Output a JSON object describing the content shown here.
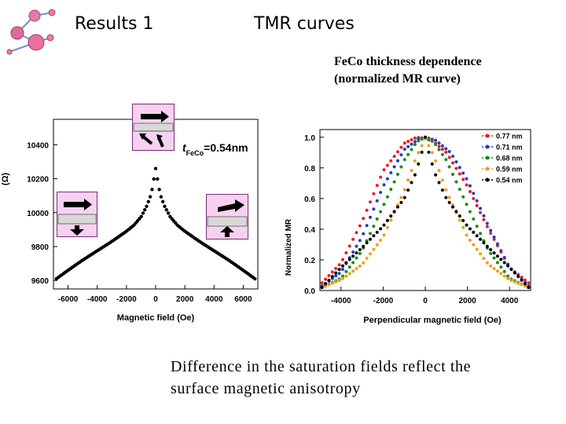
{
  "slide": {
    "title_left": "Results 1",
    "title_right": "TMR curves",
    "subtitle_line1": "FeCo thickness dependence",
    "subtitle_line2": "(normalized MR curve)",
    "conclusion_line1": "Difference in the saturation fields reflect the",
    "conclusion_line2": "surface magnetic anisotropy"
  },
  "chart_data": [
    {
      "type": "scatter",
      "title": "",
      "xlabel": "Magnetic field (Oe)",
      "ylabel": "R (Ω)",
      "ylabel_visible": "(Ω)",
      "annotation_t": "t",
      "annotation_sub": "FeCo",
      "annotation_value": "=0.54nm",
      "xlim": [
        -7000,
        7000
      ],
      "ylim": [
        9550,
        10550
      ],
      "xticks": [
        -6000,
        -4000,
        -2000,
        0,
        2000,
        4000,
        6000
      ],
      "yticks": [
        9600,
        9800,
        10000,
        10200,
        10400
      ],
      "series": [
        {
          "color": "#000000",
          "x": [
            -6800,
            -6000,
            -5000,
            -4000,
            -3000,
            -2000,
            -1500,
            -1000,
            -600,
            -300,
            -100,
            0,
            100,
            300,
            600,
            1000,
            1500,
            2000,
            3000,
            4000,
            5000,
            6000,
            6800
          ],
          "y": [
            9610,
            9660,
            9720,
            9775,
            9830,
            9890,
            9925,
            9975,
            10040,
            10110,
            10210,
            10260,
            10210,
            10110,
            10040,
            9975,
            9925,
            9890,
            9830,
            9775,
            9720,
            9660,
            9610
          ]
        }
      ],
      "magnetization_diagrams": [
        {
          "position": "top-center",
          "top_arrow": "right",
          "bottom_arrow": "random"
        },
        {
          "position": "left",
          "top_arrow": "right",
          "bottom_arrow": "down"
        },
        {
          "position": "right",
          "top_arrow": "right",
          "bottom_arrow": "up"
        }
      ]
    },
    {
      "type": "scatter",
      "title": "",
      "xlabel": "Perpendicular magnetic field (Oe)",
      "ylabel": "Normalized MR",
      "xlim": [
        -5000,
        5000
      ],
      "ylim": [
        0.0,
        1.05
      ],
      "xticks": [
        -4000,
        -2000,
        0,
        2000,
        4000
      ],
      "yticks": [
        0.0,
        0.2,
        0.4,
        0.6,
        0.8,
        1.0
      ],
      "ytick_labels": [
        "0.0",
        "0.2",
        "0.4",
        "0.6",
        "0.8",
        "1.0"
      ],
      "legend": "top-right",
      "series": [
        {
          "name": "0.77 nm",
          "color": "#ee1c24",
          "x": [
            -4900,
            -4000,
            -3000,
            -2000,
            -1000,
            -400,
            0,
            400,
            1000,
            2000,
            3000,
            4000,
            4900
          ],
          "y": [
            0.05,
            0.18,
            0.45,
            0.78,
            0.96,
            1.0,
            0.99,
            0.97,
            0.9,
            0.68,
            0.4,
            0.15,
            0.05
          ]
        },
        {
          "name": "0.71 nm",
          "color": "#1f3fc8",
          "x": [
            -4900,
            -4000,
            -3000,
            -2000,
            -1000,
            -300,
            0,
            500,
            1200,
            2000,
            3000,
            4000,
            4900
          ],
          "y": [
            0.03,
            0.12,
            0.35,
            0.68,
            0.92,
            0.99,
            1.0,
            0.98,
            0.9,
            0.72,
            0.42,
            0.15,
            0.03
          ]
        },
        {
          "name": "0.68 nm",
          "color": "#1a8a1a",
          "x": [
            -4900,
            -4000,
            -3000,
            -2000,
            -1000,
            -400,
            0,
            400,
            1000,
            2000,
            3000,
            4000,
            4900
          ],
          "y": [
            0.02,
            0.08,
            0.26,
            0.55,
            0.85,
            0.97,
            1.0,
            0.97,
            0.85,
            0.55,
            0.26,
            0.08,
            0.02
          ]
        },
        {
          "name": "0.59 nm",
          "color": "#f39c1a",
          "x": [
            -4900,
            -4000,
            -3000,
            -2000,
            -1000,
            -400,
            0,
            400,
            1000,
            2000,
            3000,
            4000,
            4900
          ],
          "y": [
            0.02,
            0.07,
            0.17,
            0.35,
            0.65,
            0.88,
            0.99,
            0.88,
            0.65,
            0.35,
            0.17,
            0.07,
            0.02
          ]
        },
        {
          "name": "0.54 nm",
          "color": "#000000",
          "x": [
            -4900,
            -4000,
            -3000,
            -2000,
            -1000,
            -500,
            -200,
            0,
            200,
            500,
            1000,
            2000,
            3000,
            4000,
            4900
          ],
          "y": [
            0.02,
            0.15,
            0.28,
            0.42,
            0.6,
            0.75,
            0.88,
            1.0,
            0.88,
            0.75,
            0.6,
            0.42,
            0.28,
            0.15,
            0.02
          ]
        }
      ]
    }
  ]
}
